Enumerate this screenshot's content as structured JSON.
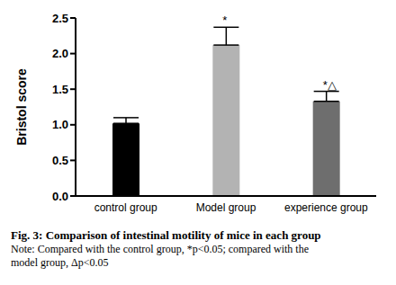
{
  "chart_data": {
    "type": "bar",
    "caption": "Fig. 3: Comparison of intestinal motility of mice in each group",
    "note": "Note: Compared with the control group, *p<0.05; compared with the model group, Δp<0.05",
    "y_label": "Bristol score",
    "categories": [
      "control group",
      "Model group",
      "experience group"
    ],
    "values": [
      1.02,
      2.12,
      1.33
    ],
    "errors": [
      0.08,
      0.25,
      0.14
    ],
    "annotations": [
      null,
      "*",
      "*△"
    ],
    "colors": [
      "#000000",
      "#b3b3b3",
      "#6e6e6e"
    ],
    "ylim": [
      0,
      2.5
    ],
    "yticks": [
      {
        "value": 0,
        "label": "0.0"
      },
      {
        "value": 0.5,
        "label": "0.5"
      },
      {
        "value": 1,
        "label": "1.0"
      },
      {
        "value": 1.5,
        "label": "1.5"
      },
      {
        "value": 2,
        "label": "2.0"
      },
      {
        "value": 2.5,
        "label": "2.5"
      }
    ]
  }
}
